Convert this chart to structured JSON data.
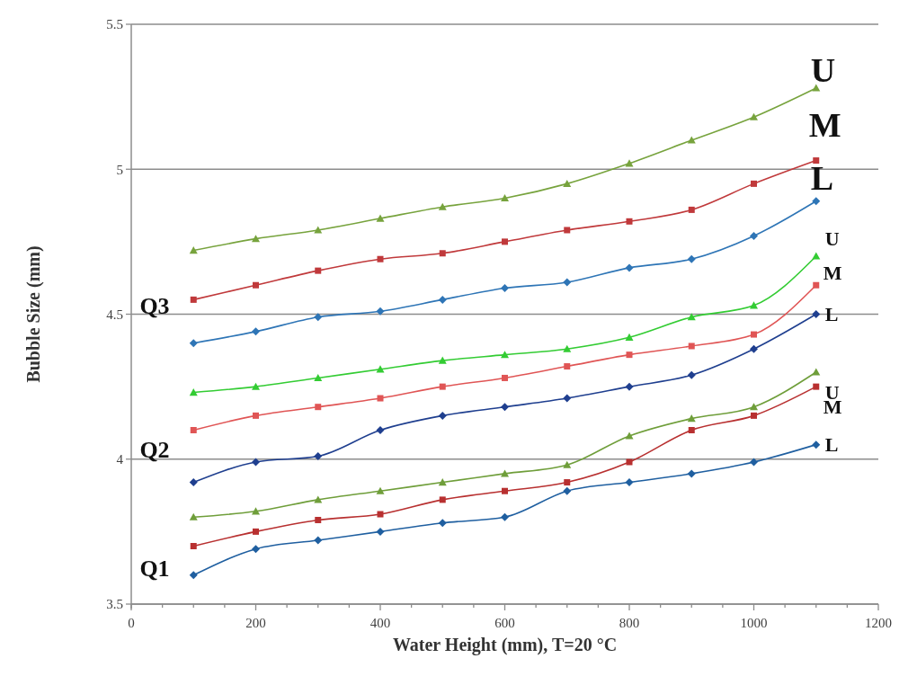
{
  "chart_data": {
    "type": "line",
    "xlabel": "Water Height (mm), T=20 °C",
    "ylabel": "Bubble Size (mm)",
    "x": [
      100,
      200,
      300,
      400,
      500,
      600,
      700,
      800,
      900,
      1000,
      1100
    ],
    "series": [
      {
        "name": "U",
        "color": "#77a33d",
        "marker": "triangle",
        "values": [
          4.72,
          4.76,
          4.79,
          4.83,
          4.87,
          4.9,
          4.95,
          5.02,
          5.1,
          5.18,
          5.28
        ]
      },
      {
        "name": "M",
        "color": "#c0393b",
        "marker": "square",
        "values": [
          4.55,
          4.6,
          4.65,
          4.69,
          4.71,
          4.75,
          4.79,
          4.82,
          4.86,
          4.95,
          5.03
        ]
      },
      {
        "name": "L",
        "color": "#2e75b6",
        "marker": "diamond",
        "values": [
          4.4,
          4.44,
          4.49,
          4.51,
          4.55,
          4.59,
          4.61,
          4.66,
          4.69,
          4.77,
          4.89
        ]
      },
      {
        "name": "U",
        "color": "#33cc33",
        "marker": "triangle",
        "values": [
          4.23,
          4.25,
          4.28,
          4.31,
          4.34,
          4.36,
          4.38,
          4.42,
          4.49,
          4.53,
          4.7
        ]
      },
      {
        "name": "M",
        "color": "#e05555",
        "marker": "square",
        "values": [
          4.1,
          4.15,
          4.18,
          4.21,
          4.25,
          4.28,
          4.32,
          4.36,
          4.39,
          4.43,
          4.6
        ]
      },
      {
        "name": "L",
        "color": "#1f3f8f",
        "marker": "diamond",
        "values": [
          3.92,
          3.99,
          4.01,
          4.1,
          4.15,
          4.18,
          4.21,
          4.25,
          4.29,
          4.38,
          4.5
        ]
      },
      {
        "name": "U",
        "color": "#6f9e3a",
        "marker": "triangle",
        "values": [
          3.8,
          3.82,
          3.86,
          3.89,
          3.92,
          3.95,
          3.98,
          4.08,
          4.14,
          4.18,
          4.3
        ]
      },
      {
        "name": "M",
        "color": "#b83030",
        "marker": "square",
        "values": [
          3.7,
          3.75,
          3.79,
          3.81,
          3.86,
          3.89,
          3.92,
          3.99,
          4.1,
          4.15,
          4.25
        ]
      },
      {
        "name": "L",
        "color": "#1f5fa0",
        "marker": "diamond",
        "values": [
          3.6,
          3.69,
          3.72,
          3.75,
          3.78,
          3.8,
          3.89,
          3.92,
          3.95,
          3.99,
          4.05
        ]
      }
    ],
    "xlim": [
      0,
      1200
    ],
    "xticks": [
      0,
      {
        "value": 50,
        "label": null
      },
      {
        "value": 100,
        "label": null
      },
      {
        "value": 150,
        "label": null
      },
      200,
      {
        "value": 250,
        "label": null
      },
      {
        "value": 300,
        "label": null
      },
      {
        "value": 350,
        "label": null
      },
      400,
      {
        "value": 450,
        "label": null
      },
      {
        "value": 500,
        "label": null
      },
      {
        "value": 550,
        "label": null
      },
      600,
      {
        "value": 650,
        "label": null
      },
      {
        "value": 700,
        "label": null
      },
      {
        "value": 750,
        "label": null
      },
      800,
      {
        "value": 850,
        "label": null
      },
      {
        "value": 900,
        "label": null
      },
      {
        "value": 950,
        "label": null
      },
      1000,
      {
        "value": 1050,
        "label": null
      },
      {
        "value": 1100,
        "label": null
      },
      {
        "value": 1150,
        "label": null
      },
      1200
    ],
    "ylim": [
      3.5,
      5.5
    ],
    "yticks": [
      3.5,
      4,
      4.5,
      5,
      5.5
    ],
    "grid": "y",
    "line_style": "solid",
    "annotations": [
      "Q3",
      "Q2",
      "Q1"
    ]
  }
}
